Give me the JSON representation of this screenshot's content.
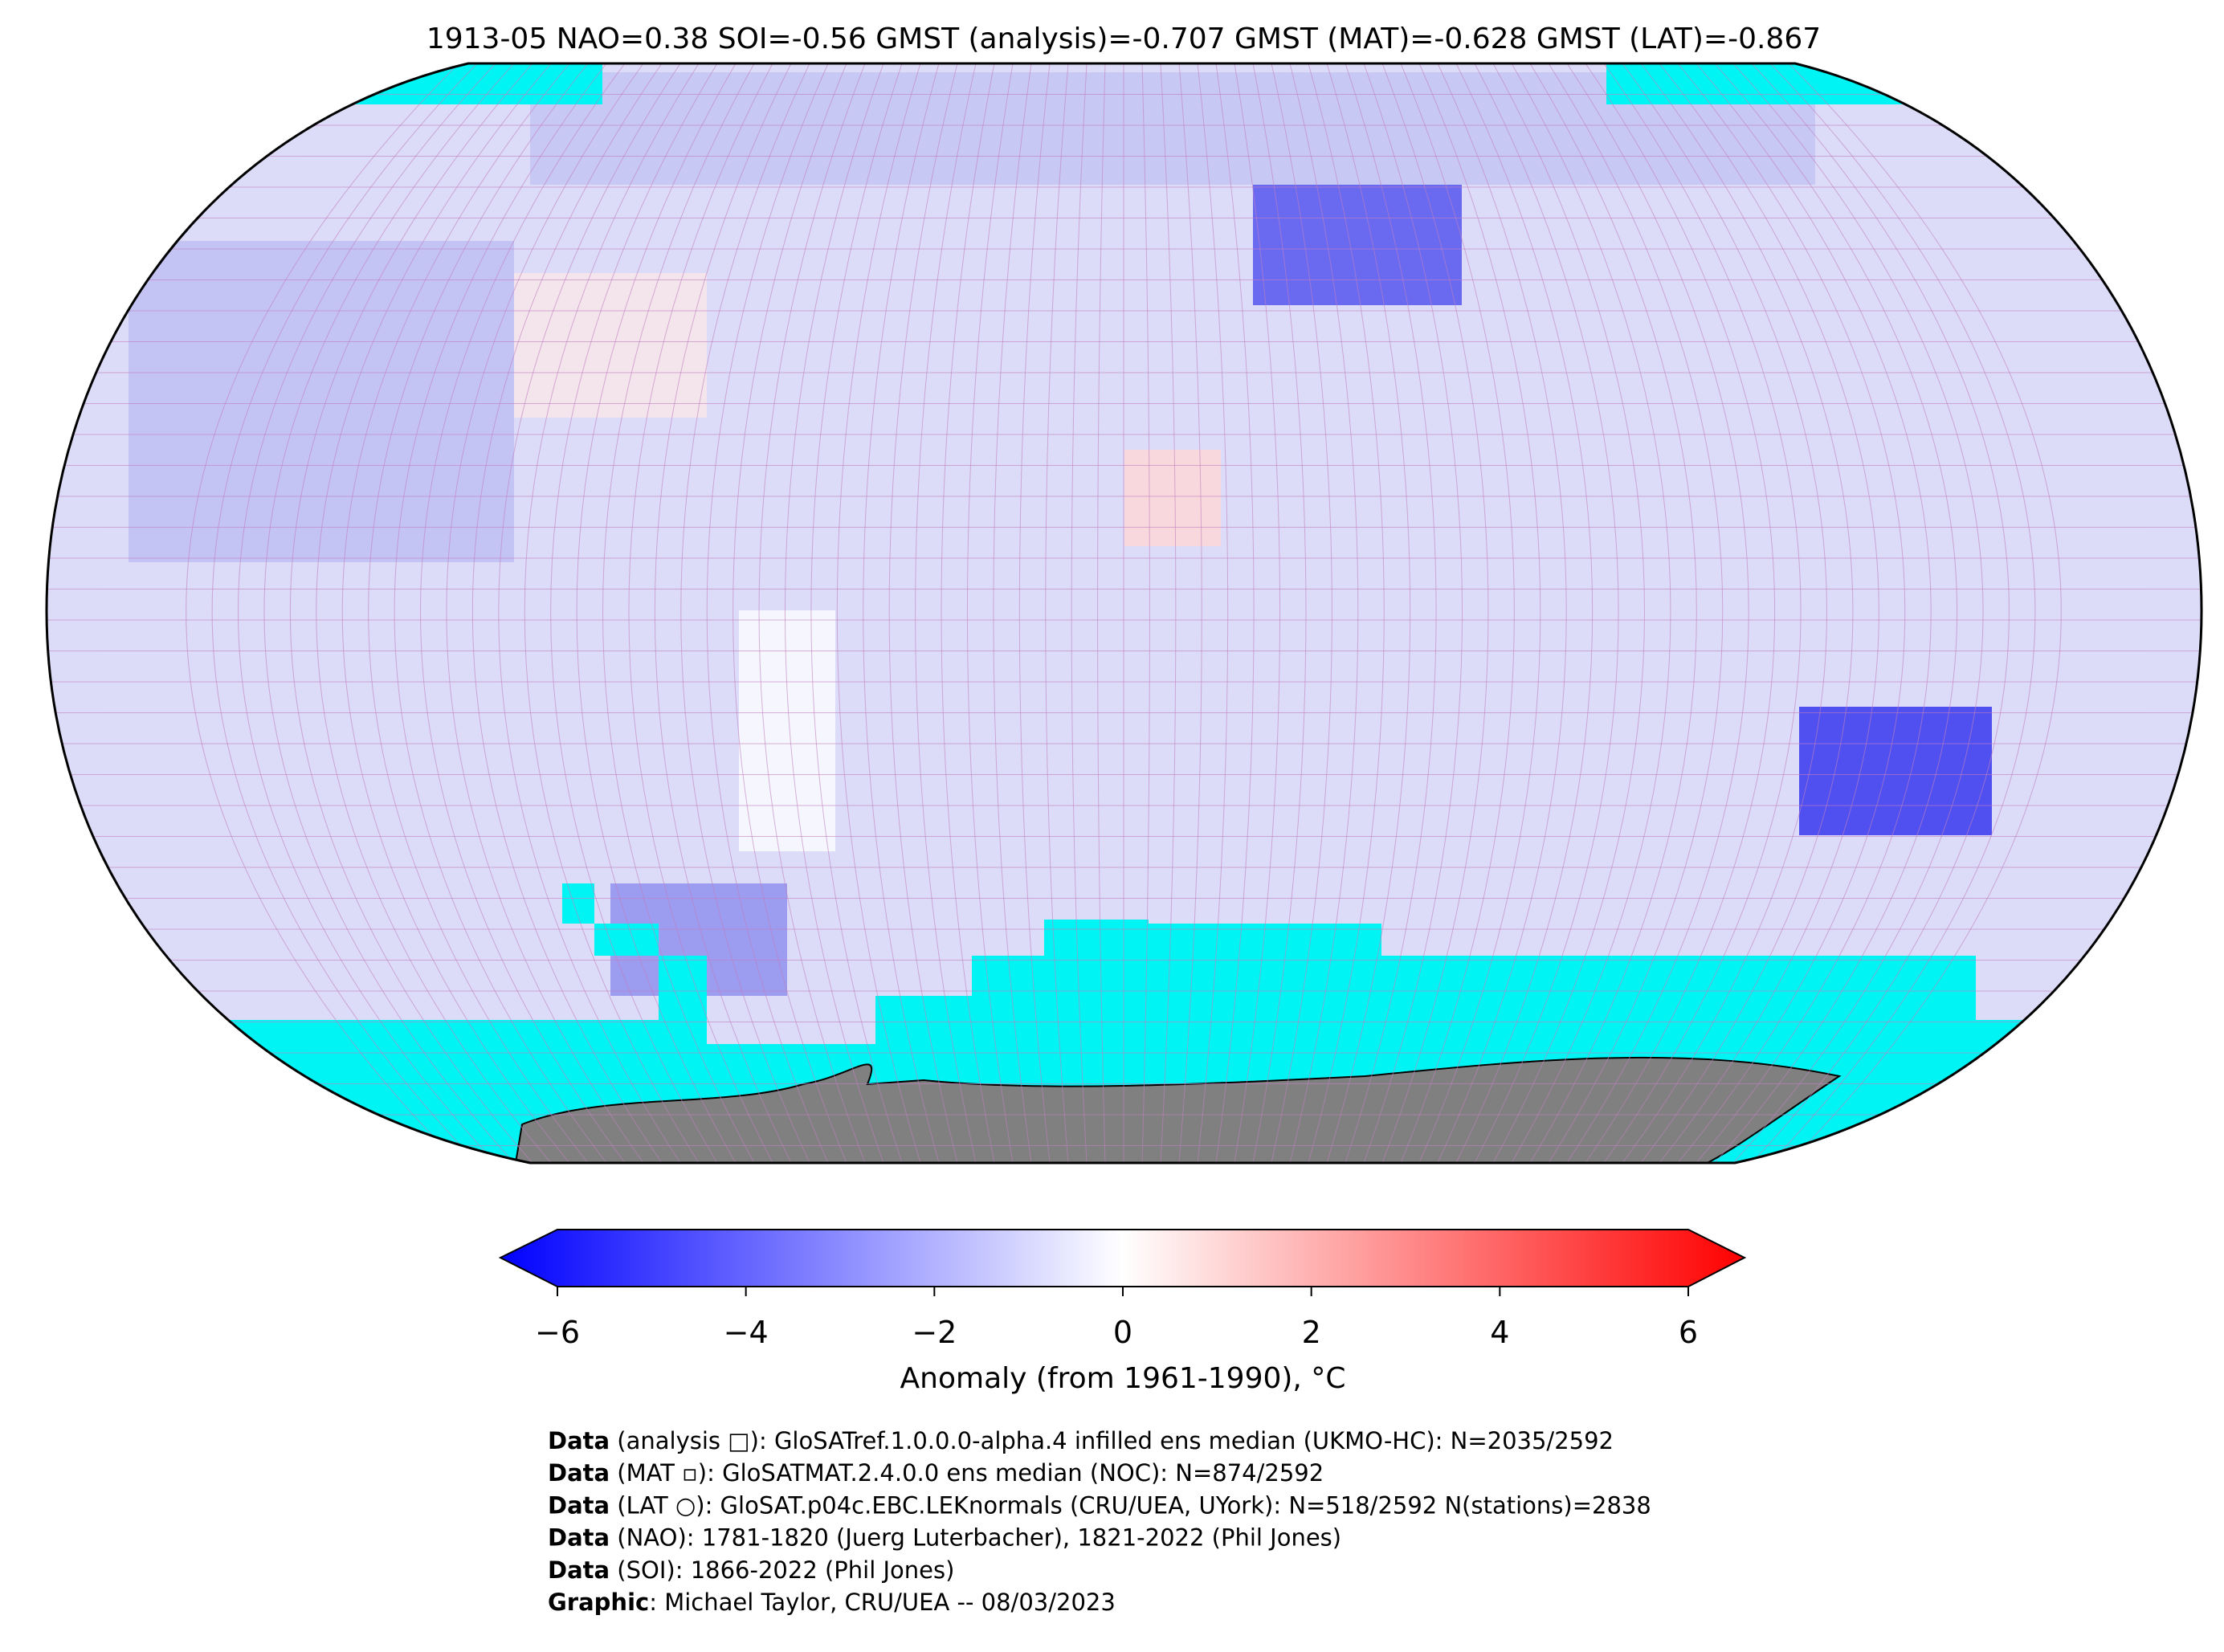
{
  "title": "1913-05 NAO=0.38 SOI=-0.56 GMST (analysis)=-0.707 GMST (MAT)=-0.628 GMST (LAT)=-0.867",
  "colorbar": {
    "lim": [
      -6,
      6
    ],
    "ticks": [
      {
        "value": -6,
        "label": "−6"
      },
      {
        "value": -4,
        "label": "−4"
      },
      {
        "value": -2,
        "label": "−2"
      },
      0,
      2,
      4,
      6
    ],
    "label": "Anomaly (from 1961-1990), °C"
  },
  "footer": [
    {
      "label": "Data",
      "text": " (analysis □): GloSATref.1.0.0.0-alpha.4 infilled ens median (UKMO-HC): N=2035/2592"
    },
    {
      "label": "Data",
      "text": " (MAT ▫): GloSATMAT.2.4.0.0 ens median (NOC): N=874/2592"
    },
    {
      "label": "Data",
      "text": " (LAT ○): GloSAT.p04c.EBC.LEKnormals (CRU/UEA, UYork): N=518/2592 N(stations)=2838"
    },
    {
      "label": "Data",
      "text": " (NAO): 1781-1820 (Juerg Luterbacher), 1821-2022 (Phil Jones)"
    },
    {
      "label": "Data",
      "text": " (SOI): 1866-2022 (Phil Jones)"
    },
    {
      "label": "Graphic",
      "text": ": Michael Taylor, CRU/UEA -- 08/03/2023"
    }
  ]
}
